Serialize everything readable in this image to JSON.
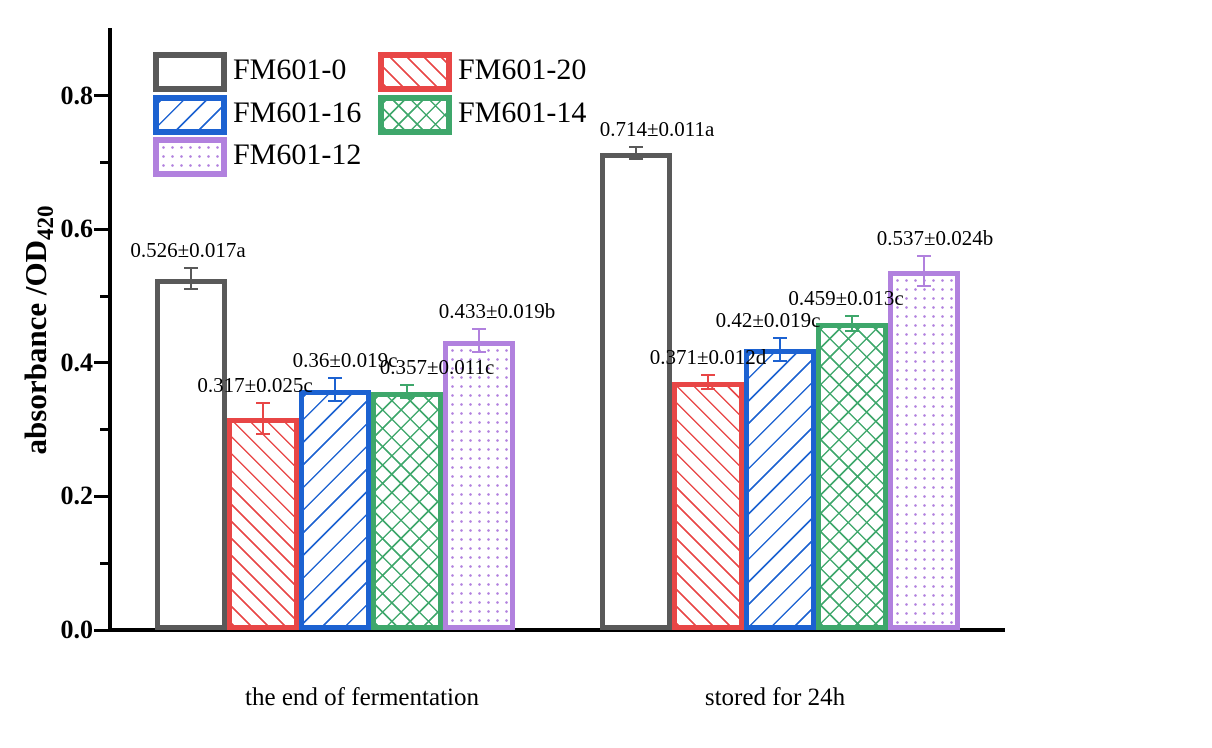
{
  "chart_data": {
    "type": "bar",
    "title": "",
    "xlabel": "",
    "ylabel": "absorbance /OD",
    "ylabel_subscript": "420",
    "categories": [
      "the end of fermentation",
      "stored for 24h"
    ],
    "ytick_labels": [
      "0.0",
      "0.2",
      "0.4",
      "0.6",
      "0.8"
    ],
    "ytick_values": [
      0,
      0.2,
      0.4,
      0.6,
      0.8
    ],
    "minor_ytick_values": [
      0.1,
      0.3,
      0.5,
      0.7
    ],
    "ylim": [
      0,
      0.9
    ],
    "grid": false,
    "legend_position": "upper-left",
    "legend_columns": 2,
    "axis_color": "#000000",
    "series": [
      {
        "name": "FM601-0",
        "color": "#595959",
        "pattern": "plain",
        "values": [
          0.526,
          0.714
        ],
        "errors": [
          0.017,
          0.011
        ],
        "point_labels": [
          "0.526±0.017a",
          "0.714±0.011a"
        ],
        "label_dx": [
          -3,
          21
        ]
      },
      {
        "name": "FM601-20",
        "color": "#e84646",
        "pattern": "diagonal-up",
        "values": [
          0.317,
          0.371
        ],
        "errors": [
          0.025,
          0.012
        ],
        "point_labels": [
          "0.317±0.025c",
          "0.371±0.012d"
        ],
        "label_dx": [
          -8,
          0
        ]
      },
      {
        "name": "FM601-16",
        "color": "#1c62d1",
        "pattern": "diagonal-down",
        "values": [
          0.36,
          0.42
        ],
        "errors": [
          0.019,
          0.019
        ],
        "point_labels": [
          "0.36±0.019c",
          "0.42±0.019c"
        ],
        "label_dx": [
          10,
          -12
        ]
      },
      {
        "name": "FM601-14",
        "color": "#3ea76b",
        "pattern": "crosshatch",
        "values": [
          0.357,
          0.459
        ],
        "errors": [
          0.011,
          0.013
        ],
        "point_labels": [
          "0.357±0.011c",
          "0.459±0.013c"
        ],
        "label_dx": [
          30,
          -6
        ]
      },
      {
        "name": "FM601-12",
        "color": "#b181de",
        "pattern": "dots",
        "values": [
          0.433,
          0.537
        ],
        "errors": [
          0.019,
          0.024
        ],
        "point_labels": [
          "0.433±0.019b",
          "0.537±0.024b"
        ],
        "label_dx": [
          18,
          11
        ]
      }
    ]
  }
}
